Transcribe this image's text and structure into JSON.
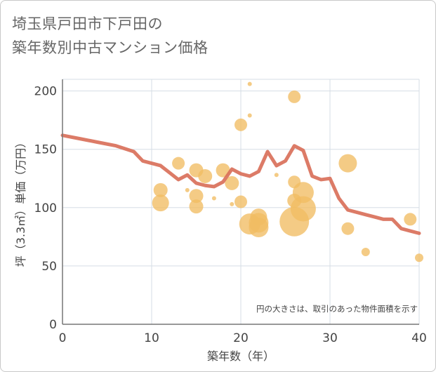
{
  "title_lines": [
    "埼玉県戸田市下戸田の",
    "築年数別中古マンション価格"
  ],
  "chart_data": {
    "type": "scatter",
    "xlabel": "築年数（年）",
    "ylabel": "坪（3.3㎡）単価（万円）",
    "note": "円の大きさは、取引のあった物件面積を示す",
    "xlim": [
      0,
      40
    ],
    "ylim": [
      0,
      210
    ],
    "xticks": [
      0,
      10,
      20,
      30,
      40
    ],
    "yticks": [
      0,
      50,
      100,
      150,
      200
    ],
    "grid": true,
    "colors": {
      "bubble": "#f1bc63",
      "line": "#d9705a",
      "grid": "#d5dde5",
      "axis": "#777777"
    },
    "scatter": [
      {
        "x": 11,
        "y": 115,
        "s": 10
      },
      {
        "x": 11,
        "y": 104,
        "s": 12
      },
      {
        "x": 13,
        "y": 138,
        "s": 9
      },
      {
        "x": 14,
        "y": 115,
        "s": 3
      },
      {
        "x": 15,
        "y": 132,
        "s": 10
      },
      {
        "x": 15,
        "y": 110,
        "s": 10
      },
      {
        "x": 15,
        "y": 101,
        "s": 10
      },
      {
        "x": 16,
        "y": 127,
        "s": 10
      },
      {
        "x": 17,
        "y": 108,
        "s": 3
      },
      {
        "x": 18,
        "y": 132,
        "s": 10
      },
      {
        "x": 19,
        "y": 121,
        "s": 10
      },
      {
        "x": 19,
        "y": 103,
        "s": 3
      },
      {
        "x": 20,
        "y": 171,
        "s": 9
      },
      {
        "x": 20,
        "y": 105,
        "s": 9
      },
      {
        "x": 21,
        "y": 206,
        "s": 3
      },
      {
        "x": 21,
        "y": 179,
        "s": 3
      },
      {
        "x": 21,
        "y": 86,
        "s": 15
      },
      {
        "x": 22,
        "y": 92,
        "s": 12
      },
      {
        "x": 22,
        "y": 87,
        "s": 14
      },
      {
        "x": 22,
        "y": 83,
        "s": 14
      },
      {
        "x": 24,
        "y": 128,
        "s": 3
      },
      {
        "x": 26,
        "y": 195,
        "s": 9
      },
      {
        "x": 26,
        "y": 122,
        "s": 9
      },
      {
        "x": 26,
        "y": 106,
        "s": 10
      },
      {
        "x": 26,
        "y": 88,
        "s": 21
      },
      {
        "x": 27,
        "y": 113,
        "s": 15
      },
      {
        "x": 27,
        "y": 99,
        "s": 18
      },
      {
        "x": 32,
        "y": 138,
        "s": 13
      },
      {
        "x": 32,
        "y": 82,
        "s": 9
      },
      {
        "x": 34,
        "y": 62,
        "s": 6
      },
      {
        "x": 39,
        "y": 90,
        "s": 9
      },
      {
        "x": 40,
        "y": 57,
        "s": 6
      }
    ],
    "line": {
      "x": [
        0,
        2,
        4,
        6,
        8,
        9,
        11,
        12,
        13,
        14,
        15,
        16,
        17,
        18,
        19,
        20,
        21,
        22,
        23,
        24,
        25,
        26,
        27,
        28,
        29,
        30,
        31,
        32,
        33,
        34,
        35,
        36,
        37,
        38,
        39,
        40
      ],
      "y": [
        162,
        159,
        156,
        153,
        148,
        140,
        136,
        130,
        124,
        128,
        121,
        119,
        118,
        122,
        133,
        129,
        127,
        131,
        148,
        136,
        140,
        153,
        149,
        127,
        124,
        125,
        108,
        98,
        96,
        94,
        92,
        90,
        90,
        82,
        80,
        78
      ]
    }
  }
}
